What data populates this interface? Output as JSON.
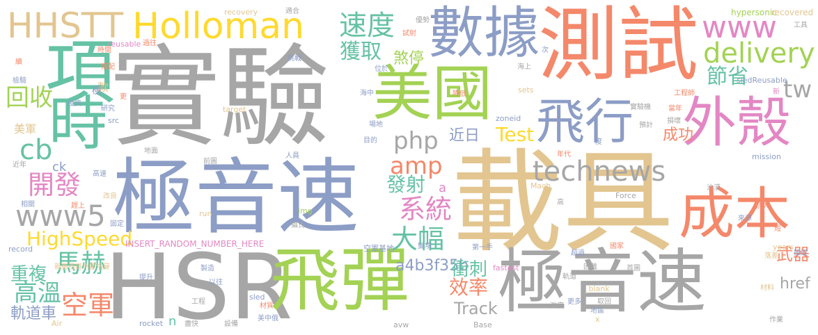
{
  "words": [
    {
      "text": "實驗",
      "color": "#a6a6a6"
    },
    {
      "text": "載具",
      "color": "#e3c590"
    },
    {
      "text": "極音速",
      "color": "#8c9dc6"
    },
    {
      "text": "測試",
      "color": "#f4886a"
    },
    {
      "text": "HSR",
      "color": "#a6a6a6"
    },
    {
      "text": "飛彈",
      "color": "#a3d254"
    },
    {
      "text": "極音速",
      "color": "#a6a6a6"
    },
    {
      "text": "美國",
      "color": "#a3d254"
    },
    {
      "text": "數據",
      "color": "#8c9dc6"
    },
    {
      "text": "外殼",
      "color": "#e387c4"
    },
    {
      "text": "成本",
      "color": "#f4886a"
    },
    {
      "text": "項",
      "color": "#66c2a5"
    },
    {
      "text": "時",
      "color": "#66c2a5"
    },
    {
      "text": "飛行",
      "color": "#8c9dc6"
    },
    {
      "text": "Holloman",
      "color": "#ffd92f"
    },
    {
      "text": "HHSTT",
      "color": "#e3c590"
    },
    {
      "text": "technews",
      "color": "#a6a6a6"
    },
    {
      "text": "www",
      "color": "#e387c4"
    },
    {
      "text": "delivery",
      "color": "#a3d254"
    },
    {
      "text": "速度",
      "color": "#66c2a5"
    },
    {
      "text": "獲取",
      "color": "#66c2a5"
    },
    {
      "text": "煞停",
      "color": "#a3d254"
    },
    {
      "text": "節省",
      "color": "#66c2a5"
    },
    {
      "text": "tw",
      "color": "#a6a6a6"
    },
    {
      "text": "php",
      "color": "#a6a6a6"
    },
    {
      "text": "amp",
      "color": "#f4886a"
    },
    {
      "text": "www5",
      "color": "#a6a6a6"
    },
    {
      "text": "cb",
      "color": "#66c2a5"
    },
    {
      "text": "開發",
      "color": "#e387c4"
    },
    {
      "text": "回收",
      "color": "#a3d254"
    },
    {
      "text": "系統",
      "color": "#e387c4"
    },
    {
      "text": "大幅",
      "color": "#66c2a5"
    },
    {
      "text": "發射",
      "color": "#66c2a5"
    },
    {
      "text": "近日",
      "color": "#8c9dc6"
    },
    {
      "text": "Test",
      "color": "#ffd92f"
    },
    {
      "text": "成功",
      "color": "#f4886a"
    },
    {
      "text": "HighSpeed",
      "color": "#ffd92f"
    },
    {
      "text": "馬赫",
      "color": "#66c2a5"
    },
    {
      "text": "a4b3f35b",
      "color": "#8c9dc6"
    },
    {
      "text": "空軍",
      "color": "#f4886a"
    },
    {
      "text": "高溫",
      "color": "#66c2a5"
    },
    {
      "text": "重複",
      "color": "#66c2a5"
    },
    {
      "text": "衝刺",
      "color": "#66c2a5"
    },
    {
      "text": "效率",
      "color": "#f4886a"
    },
    {
      "text": "Track",
      "color": "#a6a6a6"
    },
    {
      "text": "href",
      "color": "#a6a6a6"
    },
    {
      "text": "武器",
      "color": "#f4886a"
    },
    {
      "text": "軌道車",
      "color": "#8c9dc6"
    },
    {
      "text": "美軍",
      "color": "#e3c590"
    },
    {
      "text": "ck",
      "color": "#8c9dc6"
    },
    {
      "text": "a",
      "color": "#e387c4"
    },
    {
      "text": "n",
      "color": "#66c2a5"
    },
    {
      "text": "款",
      "color": "#e3c590"
    },
    {
      "text": "極",
      "color": "#8c9dc6"
    },
    {
      "text": "INSERT_RANDOM_NUMBER_HERE",
      "color": "#e387c4"
    },
    {
      "text": "空軍基地",
      "color": "#8c9dc6"
    },
    {
      "text": "hypersonic",
      "color": "#a3d254"
    },
    {
      "text": "recovered",
      "color": "#e3c590"
    },
    {
      "text": "recovery",
      "color": "#e3c590"
    },
    {
      "text": "reusable",
      "color": "#e387c4"
    },
    {
      "text": "sledReusable",
      "color": "#8c9dc6"
    },
    {
      "text": "target",
      "color": "#e3c590"
    },
    {
      "text": "src",
      "color": "#8c9dc6"
    },
    {
      "text": "zoneid",
      "color": "#8c9dc6"
    },
    {
      "text": "sets",
      "color": "#e3c590"
    },
    {
      "text": "mission",
      "color": "#8c9dc6"
    },
    {
      "text": "Mach",
      "color": "#e3c590"
    },
    {
      "text": "Force",
      "color": "#a6a6a6"
    },
    {
      "text": "record",
      "color": "#8c9dc6"
    },
    {
      "text": "run",
      "color": "#e3c590"
    },
    {
      "text": "img",
      "color": "#a3d254"
    },
    {
      "text": "fastest",
      "color": "#e387c4"
    },
    {
      "text": "sled",
      "color": "#8c9dc6"
    },
    {
      "text": "_blank",
      "color": "#e3c590"
    },
    {
      "text": "years",
      "color": "#e3c590"
    },
    {
      "text": "rocket",
      "color": "#8c9dc6"
    },
    {
      "text": "Air",
      "color": "#e3c590"
    },
    {
      "text": "Base",
      "color": "#a6a6a6"
    },
    {
      "text": "avw",
      "color": "#a6a6a6"
    },
    {
      "text": "x",
      "color": "#e3c590"
    },
    {
      "text": "適合",
      "color": "#a6a6a6"
    },
    {
      "text": "優勢",
      "color": "#a6a6a6"
    },
    {
      "text": "工具",
      "color": "#a6a6a6"
    },
    {
      "text": "試射",
      "color": "#f4886a"
    },
    {
      "text": "挑戰",
      "color": "#8c9dc6"
    },
    {
      "text": "位於",
      "color": "#8c9dc6"
    },
    {
      "text": "海上",
      "color": "#a6a6a6"
    },
    {
      "text": "次",
      "color": "#8c9dc6"
    },
    {
      "text": "工程師",
      "color": "#f4886a"
    },
    {
      "text": "實驗機",
      "color": "#a6a6a6"
    },
    {
      "text": "當年",
      "color": "#f4886a"
    },
    {
      "text": "新",
      "color": "#e387c4"
    },
    {
      "text": "損壞",
      "color": "#a6a6a6"
    },
    {
      "text": "預計",
      "color": "#a6a6a6"
    },
    {
      "text": "海中",
      "color": "#8c9dc6"
    },
    {
      "text": "降低",
      "color": "#f4886a"
    },
    {
      "text": "場地",
      "color": "#8c9dc6"
    },
    {
      "text": "目的",
      "color": "#8c9dc6"
    },
    {
      "text": "研究",
      "color": "#8c9dc6"
    },
    {
      "text": "投資",
      "color": "#8c9dc6"
    },
    {
      "text": "更",
      "color": "#f4886a"
    },
    {
      "text": "時間",
      "color": "#f4886a"
    },
    {
      "text": "過往",
      "color": "#f4886a"
    },
    {
      "text": "搭配",
      "color": "#f4886a"
    },
    {
      "text": "檢驗",
      "color": "#8c9dc6"
    },
    {
      "text": "續",
      "color": "#f4886a"
    },
    {
      "text": "地面",
      "color": "#a6a6a6"
    },
    {
      "text": "近年",
      "color": "#a6a6a6"
    },
    {
      "text": "高速",
      "color": "#8c9dc6"
    },
    {
      "text": "相關",
      "color": "#8c9dc6"
    },
    {
      "text": "趕上",
      "color": "#f4886a"
    },
    {
      "text": "改良",
      "color": "#e3c590"
    },
    {
      "text": "前圖",
      "color": "#a6a6a6"
    },
    {
      "text": "人員",
      "color": "#8c9dc6"
    },
    {
      "text": "年代",
      "color": "#f4886a"
    },
    {
      "text": "度",
      "color": "#8c9dc6"
    },
    {
      "text": "高",
      "color": "#a6a6a6"
    },
    {
      "text": "沙漠",
      "color": "#a6a6a6"
    },
    {
      "text": "沉入",
      "color": "#f4886a"
    },
    {
      "text": "來源",
      "color": "#8c9dc6"
    },
    {
      "text": "短",
      "color": "#f4886a"
    },
    {
      "text": "固定",
      "color": "#8c9dc6"
    },
    {
      "text": "攝氏",
      "color": "#a6a6a6"
    },
    {
      "text": "變項",
      "color": "#8c9dc6"
    },
    {
      "text": "第一手",
      "color": "#8c9dc6"
    },
    {
      "text": "國家",
      "color": "#f4886a"
    },
    {
      "text": "超過",
      "color": "#8c9dc6"
    },
    {
      "text": "軌道",
      "color": "#a6a6a6"
    },
    {
      "text": "困難",
      "color": "#a6a6a6"
    },
    {
      "text": "首圖",
      "color": "#a6a6a6"
    },
    {
      "text": "落差",
      "color": "#e3c590"
    },
    {
      "text": "操縱",
      "color": "#8c9dc6"
    },
    {
      "text": "材料",
      "color": "#e3c590"
    },
    {
      "text": "新墨西哥州霍洛曼",
      "color": "#e3c590"
    },
    {
      "text": "提升",
      "color": "#8c9dc6"
    },
    {
      "text": "製造",
      "color": "#8c9dc6"
    },
    {
      "text": "以往",
      "color": "#8c9dc6"
    },
    {
      "text": "工程",
      "color": "#a6a6a6"
    },
    {
      "text": "材質",
      "color": "#f4886a"
    },
    {
      "text": "美中俄",
      "color": "#8c9dc6"
    },
    {
      "text": "設備",
      "color": "#a6a6a6"
    },
    {
      "text": "盡快",
      "color": "#a6a6a6"
    },
    {
      "text": "更多",
      "color": "#8c9dc6"
    },
    {
      "text": "取回",
      "color": "#a6a6a6"
    },
    {
      "text": "強度",
      "color": "#a6a6a6"
    },
    {
      "text": "地區",
      "color": "#8c9dc6"
    },
    {
      "text": "作業",
      "color": "#a6a6a6"
    }
  ]
}
